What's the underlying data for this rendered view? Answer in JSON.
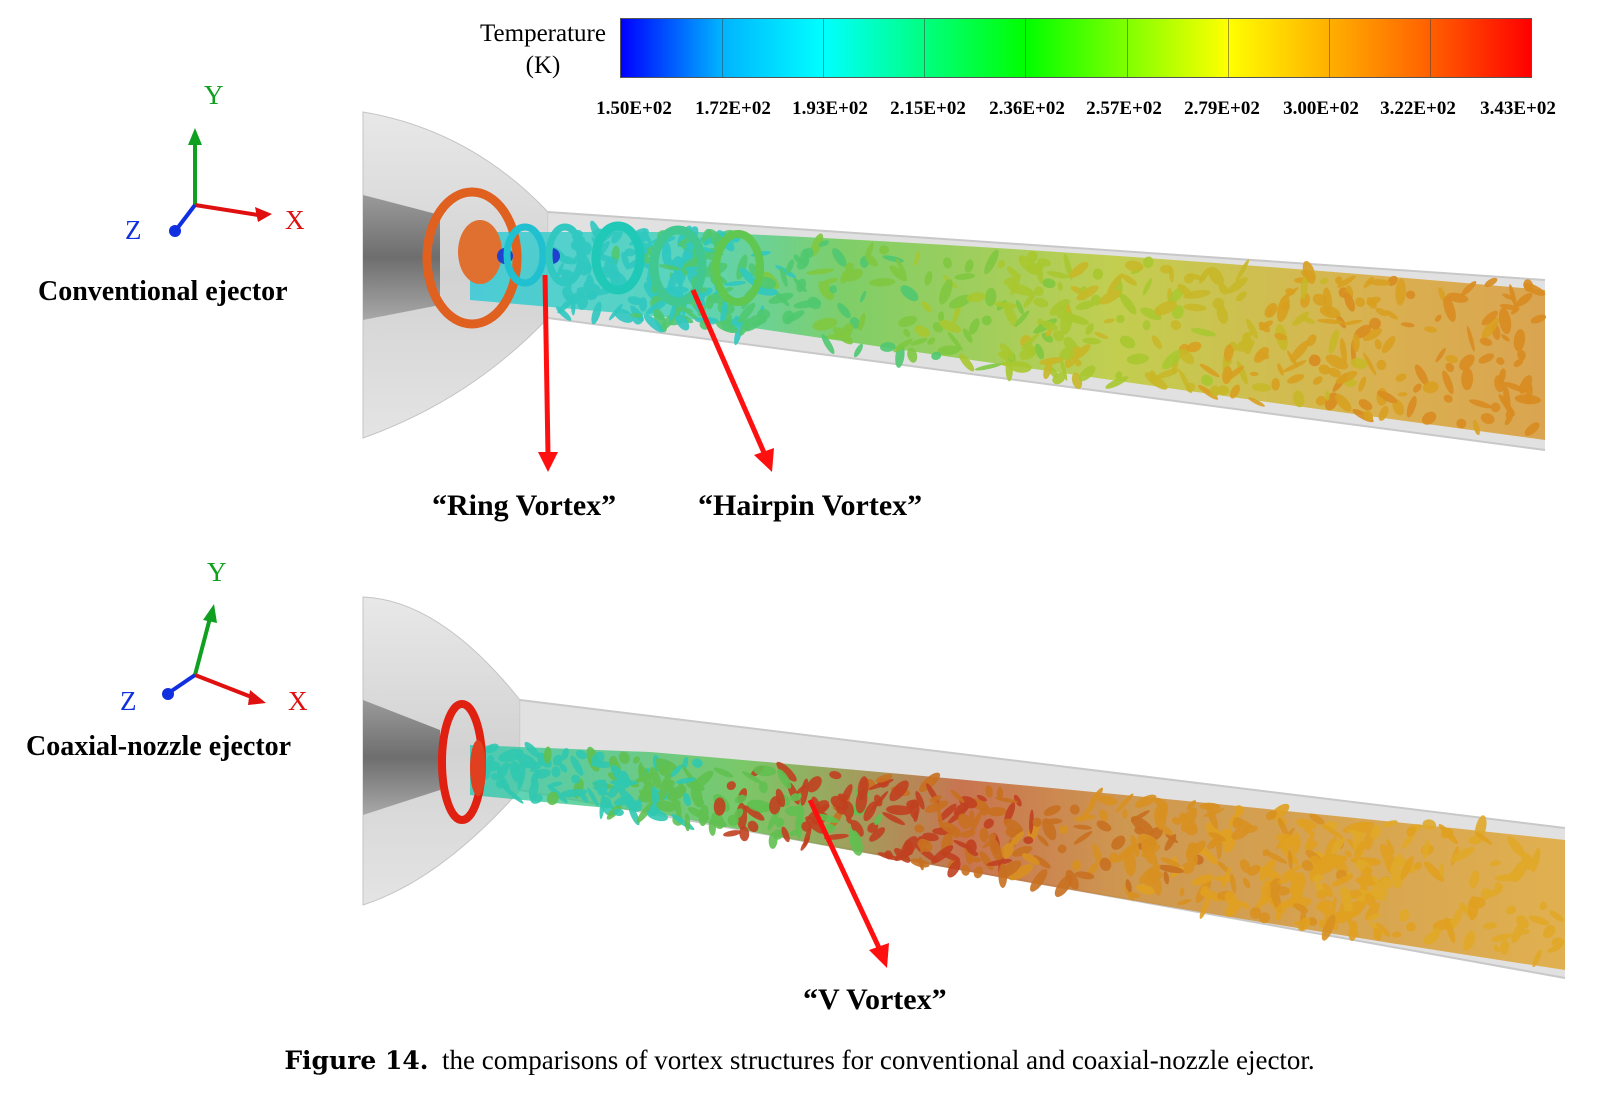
{
  "colorbar": {
    "title_line1": "Temperature",
    "title_line2": "(K)",
    "ticks": [
      "1.50E+02",
      "1.72E+02",
      "1.93E+02",
      "2.15E+02",
      "2.36E+02",
      "2.57E+02",
      "2.79E+02",
      "3.00E+02",
      "3.22E+02",
      "3.43E+02"
    ],
    "colors": [
      "#0000ff",
      "#00b4ff",
      "#00ffff",
      "#00ff80",
      "#00ff00",
      "#80ff00",
      "#ffff00",
      "#ffb000",
      "#ff6000",
      "#ff0000"
    ]
  },
  "top_panel": {
    "label": "Conventional ejector",
    "axes": {
      "x": "X",
      "y": "Y",
      "z": "Z"
    },
    "annotations": [
      "“Ring Vortex”",
      "“Hairpin Vortex”"
    ]
  },
  "bottom_panel": {
    "label": "Coaxial-nozzle ejector",
    "axes": {
      "x": "X",
      "y": "Y",
      "z": "Z"
    },
    "annotations": [
      "“V Vortex”"
    ]
  },
  "caption": {
    "figure": "Figure 14.",
    "text": "the comparisons of vortex structures for conventional and coaxial-nozzle ejector."
  }
}
